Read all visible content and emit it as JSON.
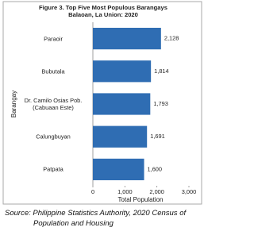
{
  "chart_data": {
    "type": "hbar",
    "title": "Figure 3. Top Five Most Populous Barangays",
    "subtitle": "Balaoan, La Union: 2020",
    "y_label": "Barangay",
    "x_label": "Total Population",
    "categories": [
      "Paraoir",
      "Bubutala",
      "Dr. Camilo Osias Pob. (Cabuaan Este)",
      "Calungbuyan",
      "Patpata"
    ],
    "values": [
      2128,
      1814,
      1793,
      1691,
      1600
    ],
    "value_labels": [
      "2,128",
      "1,814",
      "1,793",
      "1,691",
      "1,600"
    ],
    "color": "#2f6db3",
    "xlim": [
      0,
      3000
    ],
    "xticks": [
      0,
      {
        "value": 1000,
        "label": "1,000"
      },
      {
        "value": 2000,
        "label": "2,000"
      },
      {
        "value": 3000,
        "label": "3,000"
      }
    ]
  },
  "source": [
    "Source: Philippine Statistics Authority, 2020 Census of",
    "Population and Housing"
  ]
}
